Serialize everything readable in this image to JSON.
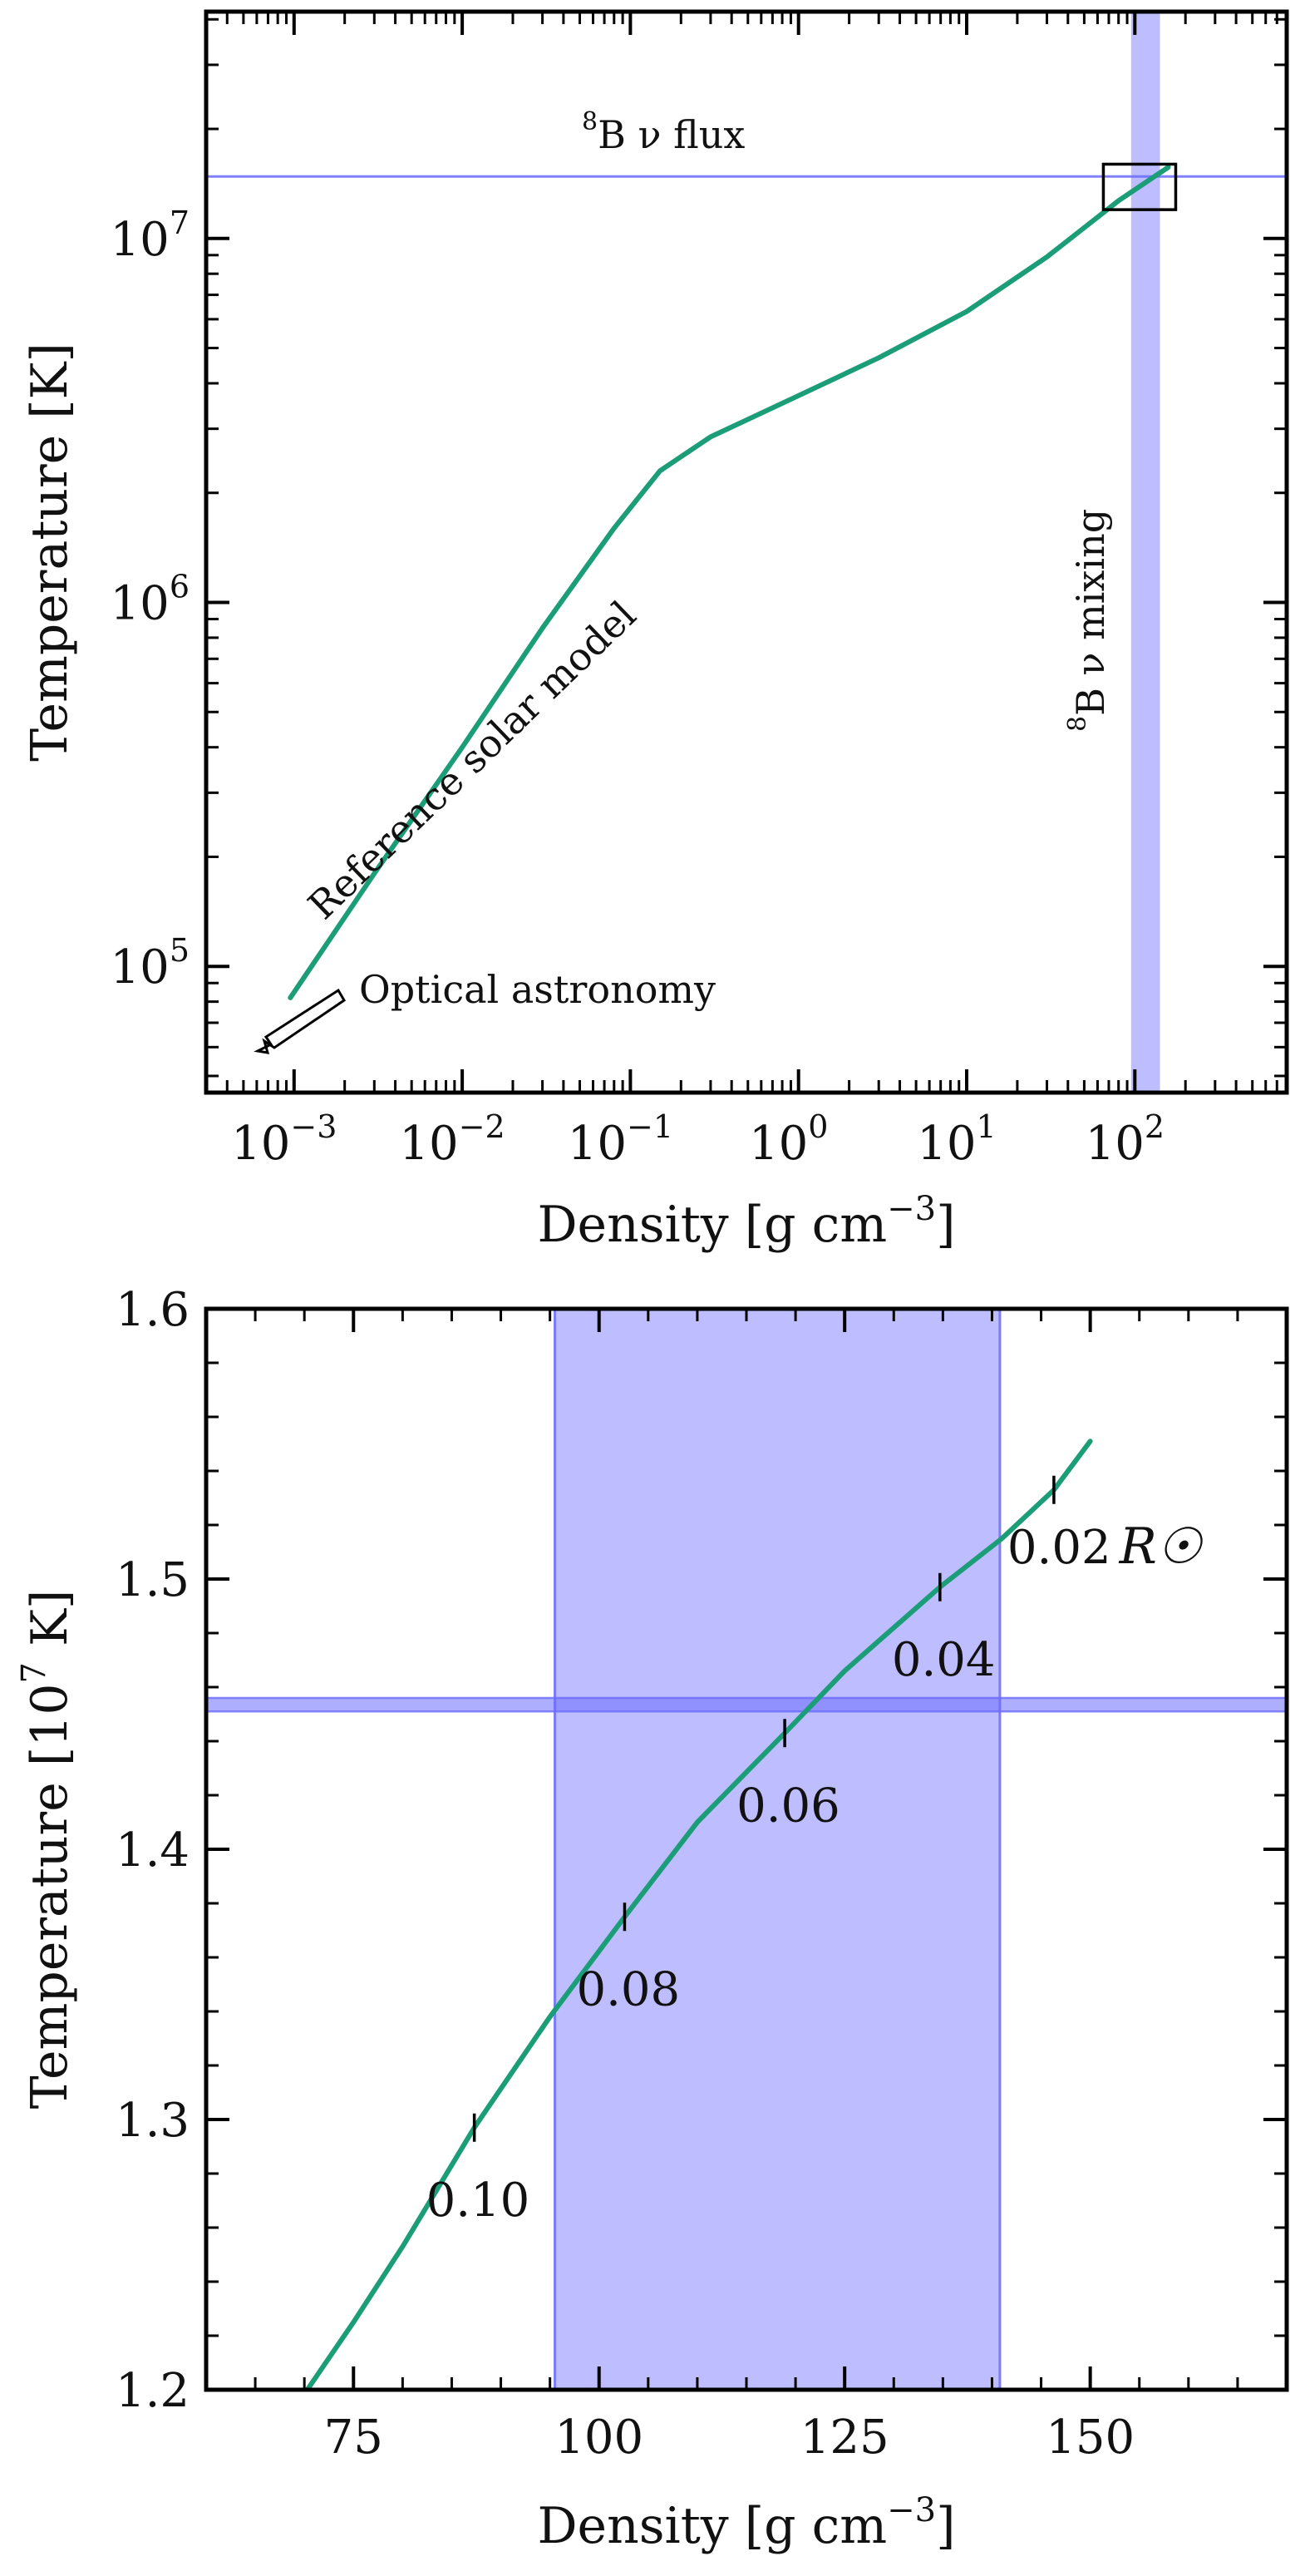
{
  "chart_data": [
    {
      "type": "line",
      "xscale": "log",
      "yscale": "log",
      "xlabel": "Density [g cm",
      "xlabel_sup": "−3",
      "xlabel_close": "]",
      "ylabel": "Temperature [K]",
      "xlim": [
        0.0003,
        800
      ],
      "ylim": [
        45000,
        42000000
      ],
      "x_ticks": [
        {
          "value": 0.001,
          "base": "10",
          "exp": "−3"
        },
        {
          "value": 0.01,
          "base": "10",
          "exp": "−2"
        },
        {
          "value": 0.1,
          "base": "10",
          "exp": "−1"
        },
        {
          "value": 1,
          "base": "10",
          "exp": "0"
        },
        {
          "value": 10,
          "base": "10",
          "exp": "1"
        },
        {
          "value": 100,
          "base": "10",
          "exp": "2"
        }
      ],
      "y_ticks": [
        {
          "value": 100000,
          "base": "10",
          "exp": "5"
        },
        {
          "value": 1000000,
          "base": "10",
          "exp": "6"
        },
        {
          "value": 10000000,
          "base": "10",
          "exp": "7"
        }
      ],
      "series": [
        {
          "name": "Reference solar model",
          "color": "#1b9e77",
          "x": [
            0.00095,
            0.003,
            0.01,
            0.03,
            0.08,
            0.15,
            0.3,
            1,
            3,
            10,
            30,
            80,
            158
          ],
          "y": [
            82000,
            180000,
            400000,
            850000,
            1600000,
            2300000,
            2850000,
            3700000,
            4700000,
            6300000,
            8900000,
            12700000,
            15700000
          ]
        }
      ],
      "bands": [
        {
          "orientation": "vertical",
          "name": "8B ν mixing",
          "range": [
            95,
            141
          ],
          "color": "#7b7bff"
        },
        {
          "orientation": "horizontal",
          "name": "8B ν flux",
          "value": 14800000,
          "color": "#6b6bff"
        }
      ],
      "zoom_box": {
        "x": [
          65,
          175
        ],
        "y": [
          12000000,
          16000000
        ]
      },
      "annotations": {
        "flux_label_sup": "8",
        "flux_label": "B ν flux",
        "mixing_label_sup": "8",
        "mixing_label": "B ν mixing",
        "model_label": "Reference solar model",
        "optical_label": "Optical astronomy"
      },
      "grid": false
    },
    {
      "type": "line",
      "xscale": "linear",
      "yscale": "linear",
      "xlabel": "Density [g cm",
      "xlabel_sup": "−3",
      "xlabel_close": "]",
      "ylabel": "Temperature [10",
      "ylabel_sup": "7",
      "ylabel_close": " K]",
      "xlim": [
        60,
        170
      ],
      "ylim": [
        1.2,
        1.6
      ],
      "x_ticks": [
        "75",
        "100",
        "125",
        "150"
      ],
      "y_ticks": [
        "1.2",
        "1.3",
        "1.4",
        "1.5",
        "1.6"
      ],
      "series": [
        {
          "name": "Reference solar model",
          "color": "#1b9e77",
          "x": [
            70.3,
            75,
            80,
            87.3,
            95,
            102.6,
            110,
            118.9,
            125,
            134.7,
            141,
            146.3,
            150
          ],
          "y": [
            1.2,
            1.225,
            1.253,
            1.297,
            1.338,
            1.375,
            1.41,
            1.443,
            1.466,
            1.497,
            1.515,
            1.533,
            1.551
          ]
        }
      ],
      "radius_markers": [
        {
          "x": 146.3,
          "y": 1.533,
          "label": "0.02",
          "label_suffix": "R☉"
        },
        {
          "x": 134.7,
          "y": 1.497,
          "label": "0.04"
        },
        {
          "x": 118.9,
          "y": 1.443,
          "label": "0.06"
        },
        {
          "x": 102.6,
          "y": 1.375,
          "label": "0.08"
        },
        {
          "x": 87.3,
          "y": 1.297,
          "label": "0.10"
        }
      ],
      "bands": [
        {
          "orientation": "vertical",
          "name": "8B ν mixing",
          "range": [
            95.5,
            140.8
          ],
          "color": "#7b7bff"
        },
        {
          "orientation": "horizontal",
          "name": "8B ν flux",
          "range": [
            1.451,
            1.456
          ],
          "color": "#6b6bff"
        }
      ],
      "grid": false
    }
  ]
}
